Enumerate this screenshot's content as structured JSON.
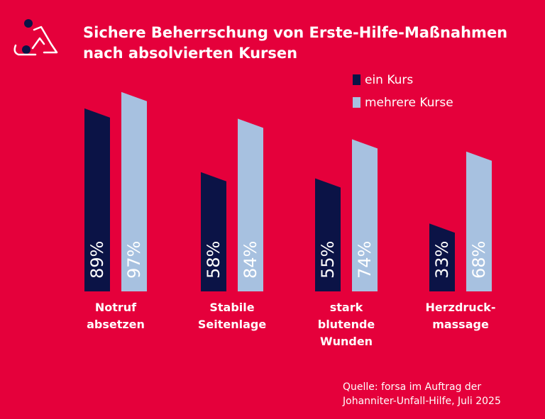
{
  "chart_data": {
    "type": "bar",
    "title": "Sichere Beherrschung von Erste-Hilfe-Maßnahmen nach absolvierten Kursen",
    "categories": [
      [
        "Notruf",
        "absetzen"
      ],
      [
        "Stabile",
        "Seitenlage"
      ],
      [
        "stark",
        "blutende",
        "Wunden"
      ],
      [
        "Herzdruck-",
        "massage"
      ]
    ],
    "series": [
      {
        "name": "ein Kurs",
        "color": "#0b1346",
        "values": [
          89,
          58,
          55,
          33
        ],
        "value_labels": [
          "89%",
          "58%",
          "55%",
          "33%"
        ]
      },
      {
        "name": "mehrere Kurse",
        "color": "#a7c1e0",
        "values": [
          97,
          84,
          74,
          68
        ],
        "value_labels": [
          "97%",
          "84%",
          "74%",
          "68%"
        ]
      }
    ],
    "ylim": [
      0,
      100
    ],
    "source": "Quelle: forsa im Auftrag der Johanniter-Unfall-Hilfe, Juli 2025"
  }
}
